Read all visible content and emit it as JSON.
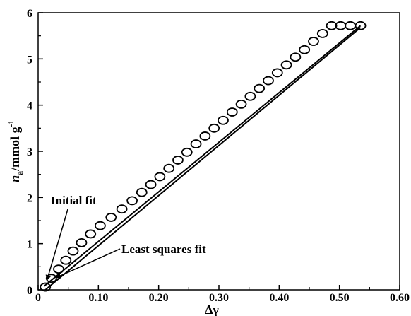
{
  "chart_data": {
    "type": "scatter",
    "title": "",
    "xlabel": "Δγ",
    "ylabel": {
      "main": "n",
      "sub": "a",
      "rest": "/mmol g",
      "sup": "-1"
    },
    "xlim": [
      0,
      0.6
    ],
    "ylim": [
      0,
      6
    ],
    "xticks": [
      "0",
      "0.10",
      "0.20",
      "0.30",
      "0.40",
      "0.50",
      "0.60"
    ],
    "yticks": [
      "0",
      "1",
      "2",
      "3",
      "4",
      "5",
      "6"
    ],
    "grid": false,
    "series": [
      {
        "marker": "open-circle",
        "x": [
          0.012,
          0.022,
          0.034,
          0.046,
          0.058,
          0.072,
          0.087,
          0.103,
          0.121,
          0.139,
          0.156,
          0.172,
          0.187,
          0.202,
          0.217,
          0.232,
          0.247,
          0.262,
          0.277,
          0.292,
          0.307,
          0.322,
          0.337,
          0.352,
          0.367,
          0.382,
          0.397,
          0.412,
          0.427,
          0.442,
          0.457,
          0.472,
          0.487,
          0.502,
          0.518,
          0.535
        ],
        "y": [
          0.06,
          0.25,
          0.45,
          0.64,
          0.84,
          1.02,
          1.21,
          1.39,
          1.57,
          1.75,
          1.93,
          2.11,
          2.28,
          2.45,
          2.63,
          2.81,
          2.98,
          3.16,
          3.33,
          3.5,
          3.67,
          3.85,
          4.02,
          4.19,
          4.36,
          4.53,
          4.7,
          4.87,
          5.04,
          5.2,
          5.38,
          5.55,
          5.72,
          5.72,
          5.72,
          5.72
        ]
      }
    ],
    "lines": [
      {
        "x": [
          0.01,
          0.535
        ],
        "y": [
          0.08,
          5.72
        ]
      },
      {
        "x": [
          0.012,
          0.535
        ],
        "y": [
          0.0,
          5.68
        ]
      }
    ],
    "annotations": [
      {
        "text": "Initial fit",
        "arrow_to": [
          0.01,
          0.12
        ]
      },
      {
        "text": "Least squares fit",
        "arrow_to": [
          0.018,
          0.14
        ]
      }
    ]
  }
}
